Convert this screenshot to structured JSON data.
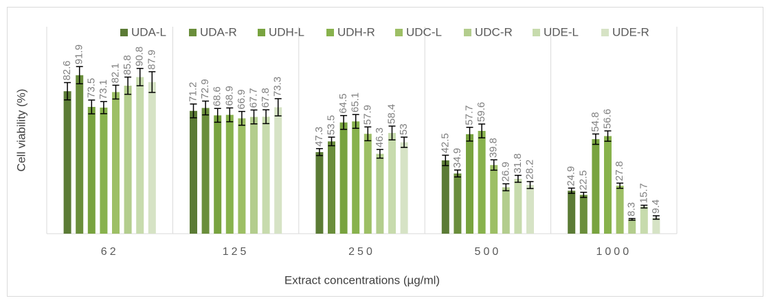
{
  "chart_data": {
    "type": "bar",
    "y_label": "Cell viability (%)",
    "x_label": "Extract concentrations (µg/ml)",
    "categories": [
      "62",
      "125",
      "250",
      "500",
      "1000"
    ],
    "ylim": [
      0,
      120
    ],
    "series": [
      {
        "name": "UDA-L",
        "color": "#5b7b35",
        "values": [
          82.6,
          71.2,
          47.3,
          42.5,
          24.9
        ],
        "errors": [
          5,
          4,
          2,
          3,
          1.5
        ]
      },
      {
        "name": "UDA-R",
        "color": "#6a8e3b",
        "values": [
          91.9,
          72.9,
          53.5,
          34.9,
          22.5
        ],
        "errors": [
          5,
          4,
          2.5,
          2,
          1.5
        ]
      },
      {
        "name": "UDH-L",
        "color": "#78a33f",
        "values": [
          73.5,
          68.6,
          64.5,
          57.7,
          54.8
        ],
        "errors": [
          4,
          4,
          4,
          4,
          3
        ]
      },
      {
        "name": "UDH-R",
        "color": "#88b24d",
        "values": [
          73.1,
          68.9,
          65.1,
          59.6,
          56.6
        ],
        "errors": [
          3.5,
          4,
          4,
          4,
          3
        ]
      },
      {
        "name": "UDC-L",
        "color": "#9dbf65",
        "values": [
          82.1,
          66.9,
          57.9,
          39.8,
          27.8
        ],
        "errors": [
          4,
          4,
          4,
          3,
          1.5
        ]
      },
      {
        "name": "UDC-R",
        "color": "#b3cd8d",
        "values": [
          85.8,
          67.7,
          46.3,
          26.9,
          8.3
        ],
        "errors": [
          5,
          4,
          2.5,
          2,
          0.5
        ]
      },
      {
        "name": "UDE-L",
        "color": "#c7dbad",
        "values": [
          90.8,
          67.8,
          58.4,
          31.8,
          15.7
        ],
        "errors": [
          5,
          4,
          4,
          2,
          0.8
        ]
      },
      {
        "name": "UDE-R",
        "color": "#d6e3c5",
        "values": [
          87.9,
          73.3,
          53,
          28.2,
          9.4
        ],
        "errors": [
          6,
          5,
          3,
          2,
          1
        ]
      }
    ]
  }
}
